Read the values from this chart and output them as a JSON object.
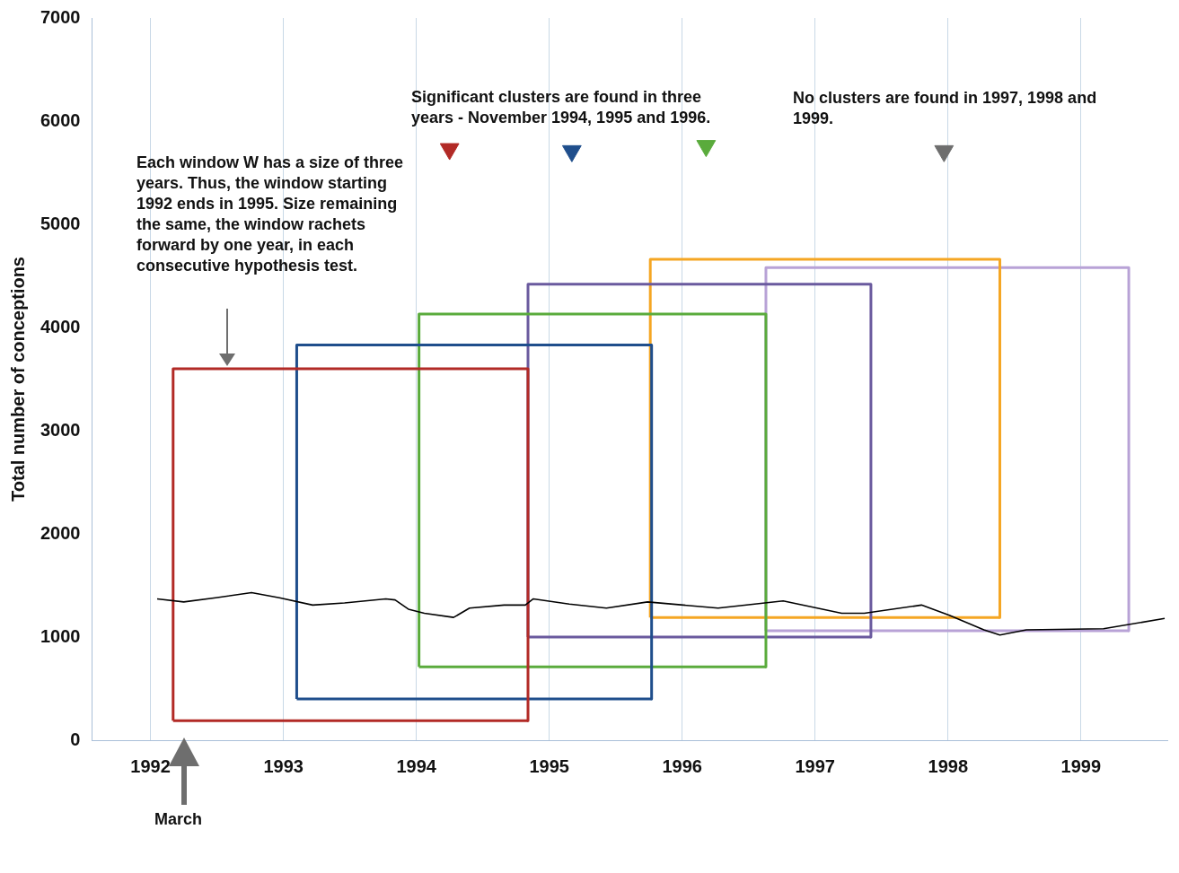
{
  "chart_data": {
    "type": "line",
    "ylabel": "Total number of conceptions",
    "annotations": [
      "Each window W  has a size of three years. Thus, the window starting 1992 ends in 1995. Size remaining the same, the window rachets forward by one year, in each consecutive hypothesis test.",
      "Significant clusters are found in three years - November 1994, 1995 and 1996.",
      "No clusters are found in 1997, 1998 and 1999.",
      "March"
    ],
    "xlim": [
      1991.56,
      1999.65
    ],
    "xticks": [
      1992,
      1993,
      1994,
      1995,
      1996,
      1997,
      1998,
      1999
    ],
    "ylim": [
      0,
      7000
    ],
    "yticks": [
      0,
      1000,
      2000,
      3000,
      4000,
      5000,
      6000,
      7000
    ],
    "grid": "x",
    "series": [
      {
        "color": "#000000",
        "marker": "none",
        "x": [
          1992.05,
          1992.25,
          1992.49,
          1992.76,
          1992.97,
          1993.22,
          1993.46,
          1993.77,
          1993.84,
          1993.94,
          1994.06,
          1994.28,
          1994.4,
          1994.66,
          1994.82,
          1994.88,
          1995.15,
          1995.43,
          1995.74,
          1996.27,
          1996.76,
          1997.2,
          1997.37,
          1997.8,
          1998.01,
          1998.27,
          1998.39,
          1998.59,
          1999.17,
          1999.63
        ],
        "values": [
          1370,
          1340,
          1380,
          1430,
          1380,
          1310,
          1330,
          1370,
          1360,
          1270,
          1230,
          1190,
          1280,
          1310,
          1310,
          1370,
          1320,
          1280,
          1340,
          1280,
          1350,
          1230,
          1230,
          1310,
          1210,
          1070,
          1020,
          1070,
          1080,
          1180
        ]
      },
      {
        "color": "#b22a26",
        "marker": "none",
        "x": [
          1992.17,
          1992.17,
          1994.84,
          1994.84
        ],
        "values": [
          190,
          3600,
          3600,
          190
        ]
      },
      {
        "color": "#b22a26",
        "marker": "none",
        "x": [
          1992.17,
          1994.84
        ],
        "values": [
          190,
          190
        ]
      },
      {
        "color": "#1f4e8c",
        "marker": "none",
        "x": [
          1993.1,
          1993.1,
          1995.77,
          1995.77
        ],
        "values": [
          400,
          3830,
          3830,
          400
        ]
      },
      {
        "color": "#1f4e8c",
        "marker": "none",
        "x": [
          1993.1,
          1995.77
        ],
        "values": [
          400,
          400
        ]
      },
      {
        "color": "#5aab3c",
        "marker": "none",
        "x": [
          1994.02,
          1994.02,
          1996.63,
          1996.63
        ],
        "values": [
          710,
          4130,
          4130,
          710
        ]
      },
      {
        "color": "#5aab3c",
        "marker": "none",
        "x": [
          1994.02,
          1996.63
        ],
        "values": [
          710,
          710
        ]
      },
      {
        "color": "#6a5a9e",
        "marker": "none",
        "x": [
          1994.84,
          1994.84,
          1997.42,
          1997.42
        ],
        "values": [
          1000,
          4420,
          4420,
          1000
        ]
      },
      {
        "color": "#6a5a9e",
        "marker": "none",
        "x": [
          1994.84,
          1997.42
        ],
        "values": [
          1000,
          1000
        ]
      },
      {
        "color": "#f5a623",
        "marker": "none",
        "x": [
          1995.76,
          1995.76,
          1998.39,
          1998.39
        ],
        "values": [
          1190,
          4660,
          4660,
          1190
        ]
      },
      {
        "color": "#f5a623",
        "marker": "none",
        "x": [
          1995.76,
          1998.39
        ],
        "values": [
          1190,
          1190
        ]
      },
      {
        "color": "#b8a2d6",
        "marker": "none",
        "x": [
          1996.63,
          1996.63,
          1999.36,
          1999.36
        ],
        "values": [
          1060,
          4580,
          4580,
          1060
        ]
      },
      {
        "color": "#b8a2d6",
        "marker": "none",
        "x": [
          1996.63,
          1999.36
        ],
        "values": [
          1060,
          1060
        ]
      },
      {
        "type": "scatter",
        "marker": "triangle",
        "colors": [
          "#b22a26",
          "#1f4e8c",
          "#5aab3c",
          "#6e6e6e"
        ],
        "x": [
          1994.25,
          1995.17,
          1996.18,
          1997.97
        ],
        "values": [
          5730,
          5710,
          5760,
          5710
        ]
      }
    ]
  }
}
